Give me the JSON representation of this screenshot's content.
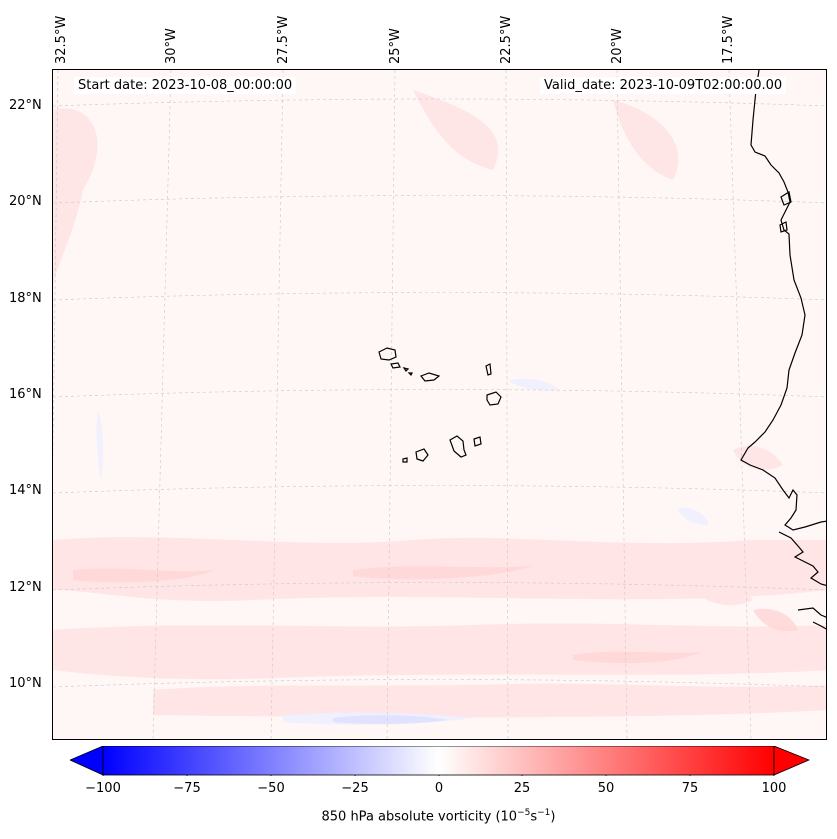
{
  "map": {
    "start_date_label": "Start date: 2023-10-08_00:00:00",
    "valid_date_label": "Valid_date: 2023-10-09T02:00:00.00",
    "lat_labels": [
      "22°N",
      "20°N",
      "18°N",
      "16°N",
      "14°N",
      "12°N",
      "10°N"
    ],
    "lon_labels": [
      "32.5°W",
      "30°W",
      "27.5°W",
      "25°W",
      "22.5°W",
      "20°W",
      "17.5°W"
    ],
    "field": "850 hPa absolute vorticity",
    "region": "Cape Verde islands and West African coast"
  },
  "colorbar": {
    "ticks": [
      "−100",
      "−75",
      "−50",
      "−25",
      "0",
      "25",
      "50",
      "75",
      "100"
    ],
    "label": "850 hPa absolute vorticity (10",
    "label_exp1": "−5",
    "label_mid": "s",
    "label_exp2": "−1",
    "label_end": ")",
    "min": -100,
    "max": 100,
    "low_color": "#0000ff",
    "mid_color": "#ffffff",
    "high_color": "#ff0000"
  }
}
